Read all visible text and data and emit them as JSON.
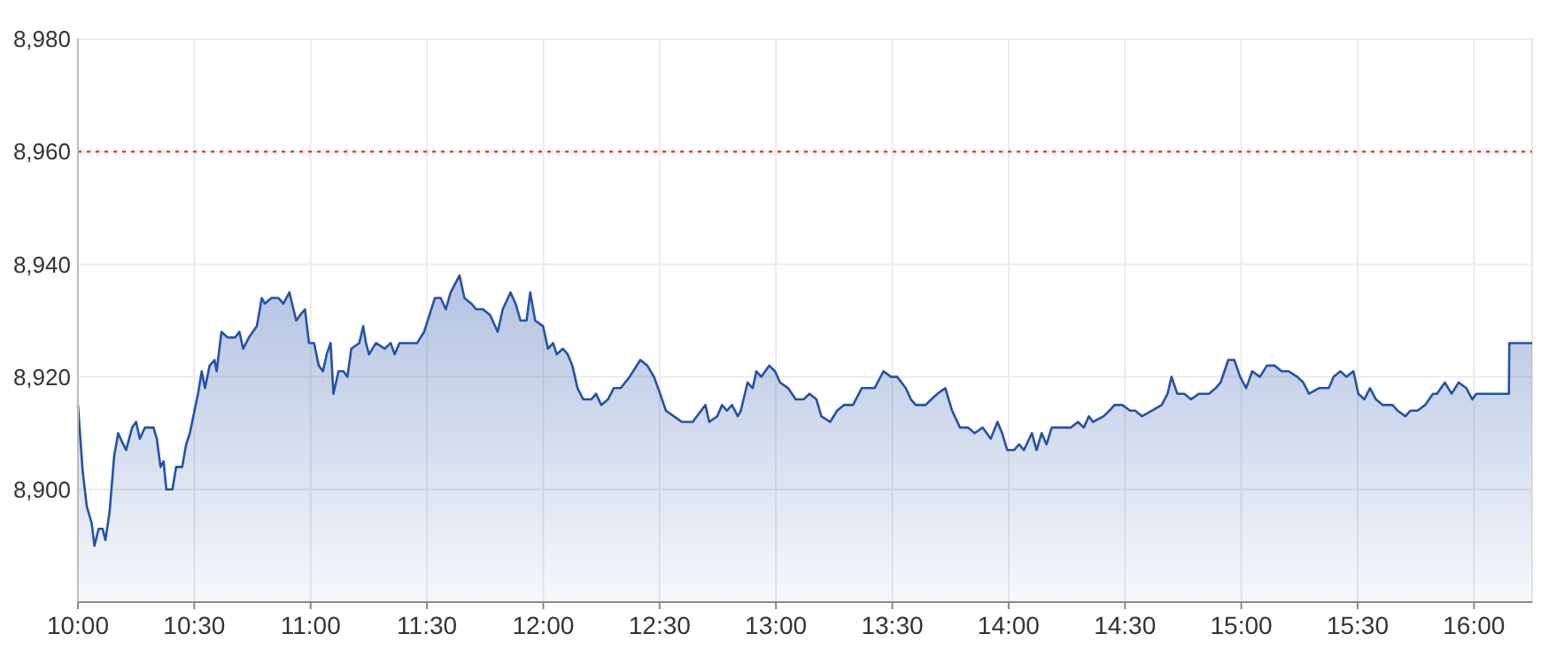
{
  "chart_data": {
    "type": "area",
    "x": [
      10,
      10.021,
      10.038,
      10.059,
      10.071,
      10.089,
      10.106,
      10.118,
      10.136,
      10.156,
      10.173,
      10.195,
      10.207,
      10.233,
      10.25,
      10.266,
      10.288,
      10.325,
      10.339,
      10.355,
      10.368,
      10.38,
      10.406,
      10.422,
      10.448,
      10.465,
      10.481,
      10.516,
      10.532,
      10.546,
      10.566,
      10.587,
      10.596,
      10.617,
      10.643,
      10.676,
      10.694,
      10.71,
      10.735,
      10.769,
      10.79,
      10.803,
      10.832,
      10.862,
      10.883,
      10.909,
      10.938,
      10.956,
      10.976,
      10.993,
      11.015,
      11.035,
      11.053,
      11.069,
      11.086,
      11.098,
      11.12,
      11.141,
      11.158,
      11.175,
      11.209,
      11.226,
      11.238,
      11.251,
      11.281,
      11.319,
      11.344,
      11.361,
      11.382,
      11.407,
      11.458,
      11.488,
      11.534,
      11.559,
      11.581,
      11.602,
      11.64,
      11.661,
      11.691,
      11.711,
      11.741,
      11.771,
      11.804,
      11.826,
      11.859,
      11.881,
      11.902,
      11.928,
      11.944,
      11.965,
      11.999,
      12.02,
      12.042,
      12.058,
      12.084,
      12.105,
      12.125,
      12.147,
      12.172,
      12.206,
      12.227,
      12.249,
      12.278,
      12.303,
      12.333,
      12.371,
      12.417,
      12.447,
      12.476,
      12.502,
      12.527,
      12.561,
      12.595,
      12.642,
      12.697,
      12.713,
      12.748,
      12.768,
      12.789,
      12.811,
      12.836,
      12.849,
      12.878,
      12.9,
      12.916,
      12.937,
      12.971,
      12.996,
      13.018,
      13.052,
      13.085,
      13.119,
      13.144,
      13.174,
      13.195,
      13.233,
      13.263,
      13.292,
      13.331,
      13.369,
      13.424,
      13.462,
      13.495,
      13.521,
      13.558,
      13.58,
      13.601,
      13.643,
      13.668,
      13.694,
      13.728,
      13.757,
      13.791,
      13.825,
      13.854,
      13.888,
      13.923,
      13.952,
      13.972,
      13.994,
      14.023,
      14.045,
      14.066,
      14.1,
      14.12,
      14.142,
      14.163,
      14.185,
      14.214,
      14.268,
      14.298,
      14.323,
      14.345,
      14.362,
      14.408,
      14.433,
      14.455,
      14.489,
      14.522,
      14.544,
      14.573,
      14.615,
      14.658,
      14.683,
      14.7,
      14.725,
      14.755,
      14.784,
      14.818,
      14.861,
      14.89,
      14.911,
      14.944,
      14.97,
      14.995,
      15.021,
      15.047,
      15.08,
      15.11,
      15.143,
      15.173,
      15.203,
      15.241,
      15.266,
      15.291,
      15.334,
      15.376,
      15.397,
      15.426,
      15.452,
      15.482,
      15.503,
      15.529,
      15.553,
      15.579,
      15.608,
      15.65,
      15.672,
      15.705,
      15.727,
      15.757,
      15.79,
      15.824,
      15.841,
      15.875,
      15.904,
      15.934,
      15.967,
      15.993,
      16.01,
      16.15,
      16.152,
      16.25
    ],
    "series": [
      {
        "color": "#2452a8",
        "values": [
          8915,
          8903,
          8897,
          8894,
          8890,
          8893,
          8893,
          8891,
          8896,
          8906,
          8910,
          8908,
          8907,
          8911,
          8912,
          8909,
          8911,
          8911,
          8909,
          8904,
          8905,
          8900,
          8900,
          8904,
          8904,
          8908,
          8910,
          8917,
          8921,
          8918,
          8922,
          8923,
          8921,
          8928,
          8927,
          8927,
          8928,
          8925,
          8927,
          8929,
          8934,
          8933,
          8934,
          8934,
          8933,
          8935,
          8930,
          8931,
          8932,
          8926,
          8926,
          8922,
          8921,
          8924,
          8926,
          8917,
          8921,
          8921,
          8920,
          8925,
          8926,
          8929,
          8926,
          8924,
          8926,
          8925,
          8926,
          8924,
          8926,
          8926,
          8926,
          8928,
          8934,
          8934,
          8932,
          8935,
          8938,
          8934,
          8933,
          8932,
          8932,
          8931,
          8928,
          8932,
          8935,
          8933,
          8930,
          8930,
          8935,
          8930,
          8929,
          8925,
          8926,
          8924,
          8925,
          8924,
          8922,
          8918,
          8916,
          8916,
          8917,
          8915,
          8916,
          8918,
          8918,
          8920,
          8923,
          8922,
          8920,
          8917,
          8914,
          8913,
          8912,
          8912,
          8915,
          8912,
          8913,
          8915,
          8914,
          8915,
          8913,
          8914,
          8919,
          8918,
          8921,
          8920,
          8922,
          8921,
          8919,
          8918,
          8916,
          8916,
          8917,
          8916,
          8913,
          8912,
          8914,
          8915,
          8915,
          8918,
          8918,
          8921,
          8920,
          8920,
          8918,
          8916,
          8915,
          8915,
          8916,
          8917,
          8918,
          8914,
          8911,
          8911,
          8910,
          8911,
          8909,
          8912,
          8910,
          8907,
          8907,
          8908,
          8907,
          8910,
          8907,
          8910,
          8908,
          8911,
          8911,
          8911,
          8912,
          8911,
          8913,
          8912,
          8913,
          8914,
          8915,
          8915,
          8914,
          8914,
          8913,
          8914,
          8915,
          8917,
          8920,
          8917,
          8917,
          8916,
          8917,
          8917,
          8918,
          8919,
          8923,
          8923,
          8920,
          8918,
          8921,
          8920,
          8922,
          8922,
          8921,
          8921,
          8920,
          8919,
          8917,
          8918,
          8918,
          8920,
          8921,
          8920,
          8921,
          8917,
          8916,
          8918,
          8916,
          8915,
          8915,
          8914,
          8913,
          8914,
          8914,
          8915,
          8917,
          8917,
          8919,
          8917,
          8919,
          8918,
          8916,
          8917,
          8917,
          8926,
          8926
        ]
      }
    ],
    "xlim": [
      10,
      16.25
    ],
    "ylim": [
      8880,
      8980
    ],
    "xticks": [
      {
        "value": 10,
        "label": "10:00"
      },
      {
        "value": 10.5,
        "label": "10:30"
      },
      {
        "value": 11,
        "label": "11:00"
      },
      {
        "value": 11.5,
        "label": "11:30"
      },
      {
        "value": 12,
        "label": "12:00"
      },
      {
        "value": 12.5,
        "label": "12:30"
      },
      {
        "value": 13,
        "label": "13:00"
      },
      {
        "value": 13.5,
        "label": "13:30"
      },
      {
        "value": 14,
        "label": "14:00"
      },
      {
        "value": 14.5,
        "label": "14:30"
      },
      {
        "value": 15,
        "label": "15:00"
      },
      {
        "value": 15.5,
        "label": "15:30"
      },
      {
        "value": 16,
        "label": "16:00"
      }
    ],
    "yticks": [
      {
        "value": 8900,
        "label": "8,900"
      },
      {
        "value": 8920,
        "label": "8,920"
      },
      {
        "value": 8940,
        "label": "8,940"
      },
      {
        "value": 8960,
        "label": "8,960"
      },
      {
        "value": 8980,
        "label": "8,980"
      }
    ],
    "grid": true,
    "ref_lines": [
      {
        "axis": "y",
        "value": 8960,
        "color": "#ff3b30",
        "line_style": "dotted"
      }
    ]
  }
}
